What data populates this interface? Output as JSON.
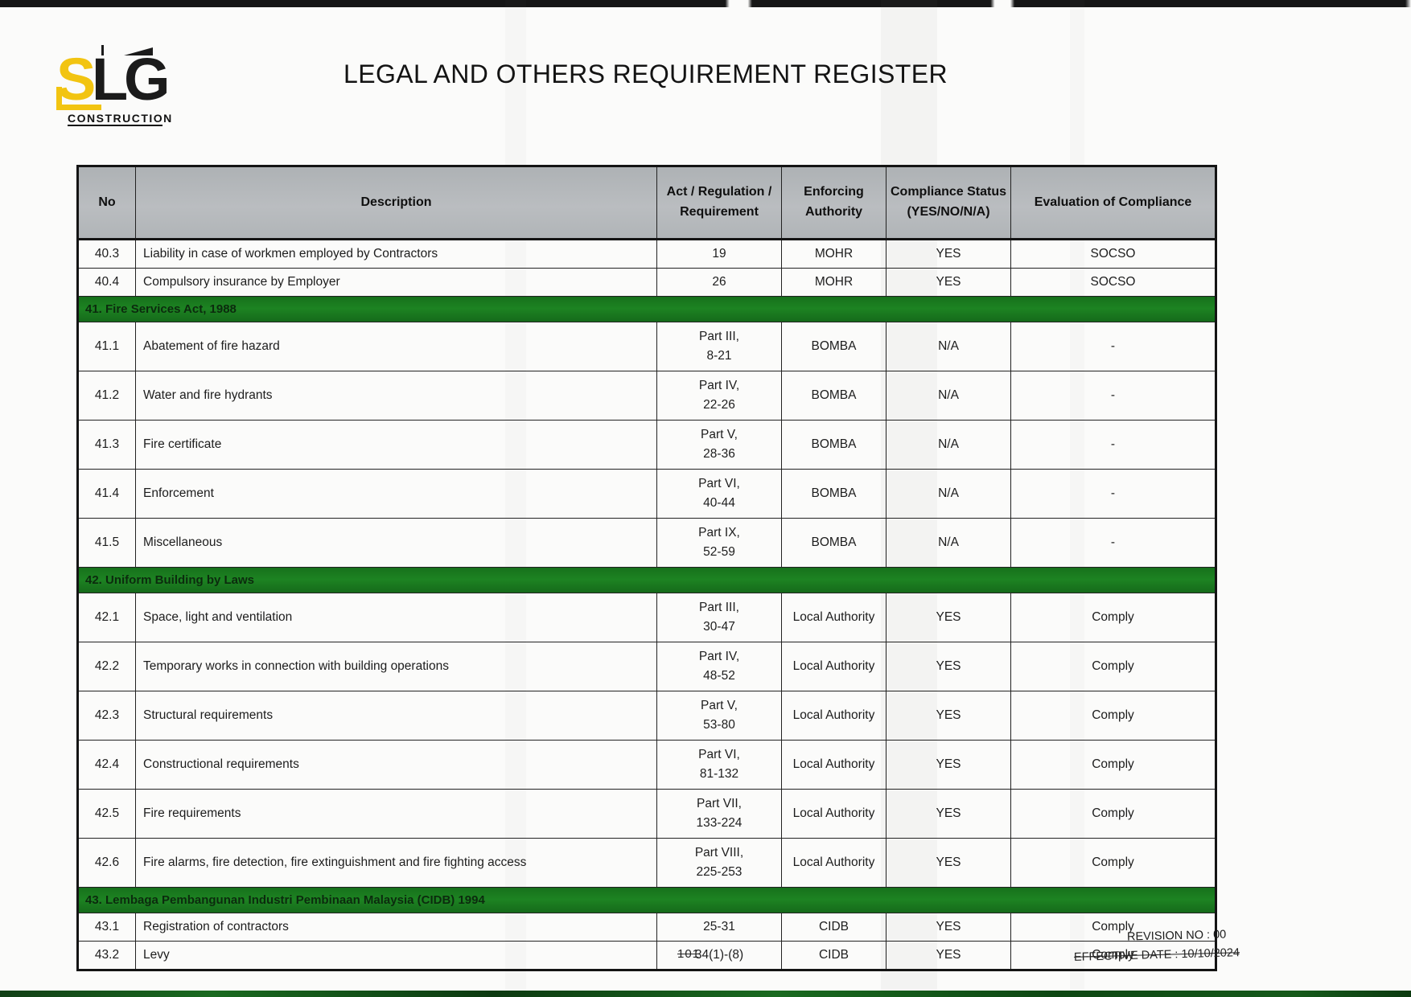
{
  "page": {
    "title": "LEGAL AND OTHERS REQUIREMENT REGISTER",
    "page_number": "101",
    "revision_label": "REVISION NO : 00",
    "effective_date_label": "EFFECTIVE DATE : 10/10/2024"
  },
  "logo": {
    "brand": "SLG",
    "caption": "CONSTRUCTION"
  },
  "colors": {
    "section_band_green": "#1a7a1f",
    "header_gray": "#b4b7ba",
    "logo_yellow": "#f2c411",
    "logo_black": "#1b1b1b"
  },
  "table": {
    "columns": [
      {
        "key": "no",
        "label": "No"
      },
      {
        "key": "description",
        "label": "Description"
      },
      {
        "key": "act",
        "label": "Act / Regulation /\nRequirement"
      },
      {
        "key": "authority",
        "label": "Enforcing\nAuthority"
      },
      {
        "key": "status",
        "label": "Compliance Status\n(YES/NO/N/A)"
      },
      {
        "key": "evaluation",
        "label": "Evaluation of Compliance"
      }
    ],
    "sections": [
      {
        "band": null,
        "rows": [
          {
            "no": "40.3",
            "description": "Liability in case of workmen employed by Contractors",
            "act": [
              "19"
            ],
            "authority": "MOHR",
            "status": "YES",
            "evaluation": "SOCSO"
          },
          {
            "no": "40.4",
            "description": "Compulsory insurance by Employer",
            "act": [
              "26"
            ],
            "authority": "MOHR",
            "status": "YES",
            "evaluation": "SOCSO"
          }
        ]
      },
      {
        "band": "41. Fire Services Act, 1988",
        "rows": [
          {
            "no": "41.1",
            "description": "Abatement of fire hazard",
            "act": [
              "Part III,",
              "8-21"
            ],
            "authority": "BOMBA",
            "status": "N/A",
            "evaluation": "-"
          },
          {
            "no": "41.2",
            "description": "Water and fire hydrants",
            "act": [
              "Part IV,",
              "22-26"
            ],
            "authority": "BOMBA",
            "status": "N/A",
            "evaluation": "-"
          },
          {
            "no": "41.3",
            "description": "Fire certificate",
            "act": [
              "Part V,",
              "28-36"
            ],
            "authority": "BOMBA",
            "status": "N/A",
            "evaluation": "-"
          },
          {
            "no": "41.4",
            "description": "Enforcement",
            "act": [
              "Part VI,",
              "40-44"
            ],
            "authority": "BOMBA",
            "status": "N/A",
            "evaluation": "-"
          },
          {
            "no": "41.5",
            "description": "Miscellaneous",
            "act": [
              "Part IX,",
              "52-59"
            ],
            "authority": "BOMBA",
            "status": "N/A",
            "evaluation": "-"
          }
        ]
      },
      {
        "band": "42. Uniform Building by Laws",
        "rows": [
          {
            "no": "42.1",
            "description": "Space, light and ventilation",
            "act": [
              "Part III,",
              "30-47"
            ],
            "authority": "Local Authority",
            "status": "YES",
            "evaluation": "Comply"
          },
          {
            "no": "42.2",
            "description": "Temporary works in connection with building operations",
            "act": [
              "Part IV,",
              "48-52"
            ],
            "authority": "Local Authority",
            "status": "YES",
            "evaluation": "Comply"
          },
          {
            "no": "42.3",
            "description": "Structural requirements",
            "act": [
              "Part V,",
              "53-80"
            ],
            "authority": "Local Authority",
            "status": "YES",
            "evaluation": "Comply"
          },
          {
            "no": "42.4",
            "description": "Constructional requirements",
            "act": [
              "Part VI,",
              "81-132"
            ],
            "authority": "Local Authority",
            "status": "YES",
            "evaluation": "Comply"
          },
          {
            "no": "42.5",
            "description": "Fire requirements",
            "act": [
              "Part VII,",
              "133-224"
            ],
            "authority": "Local Authority",
            "status": "YES",
            "evaluation": "Comply"
          },
          {
            "no": "42.6",
            "description": "Fire alarms, fire detection, fire extinguishment and fire fighting access",
            "act": [
              "Part VIII,",
              "225-253"
            ],
            "authority": "Local Authority",
            "status": "YES",
            "evaluation": "Comply"
          }
        ]
      },
      {
        "band": "43. Lembaga Pembangunan Industri Pembinaan Malaysia (CIDB) 1994",
        "rows": [
          {
            "no": "43.1",
            "description": "Registration of contractors",
            "act": [
              "25-31"
            ],
            "authority": "CIDB",
            "status": "YES",
            "evaluation": "Comply"
          },
          {
            "no": "43.2",
            "description": "Levy",
            "act": [
              "34(1)-(8)"
            ],
            "authority": "CIDB",
            "status": "YES",
            "evaluation": "Comply"
          }
        ]
      }
    ]
  }
}
